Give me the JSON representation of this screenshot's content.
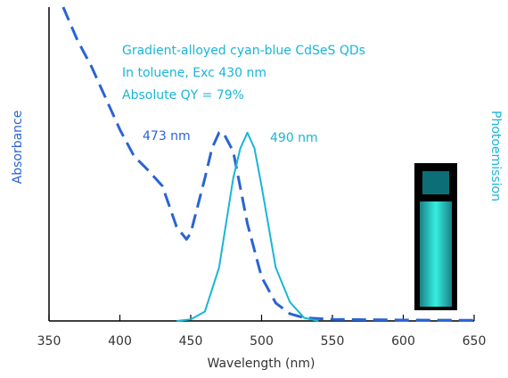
{
  "chart_data": {
    "type": "line",
    "annotations": [
      "Gradient-alloyed cyan-blue CdSeS QDs",
      "In toluene, Exc 430 nm",
      "Absolute QY = 79%"
    ],
    "peak_labels": [
      "473 nm",
      "490 nm"
    ],
    "xlabel": "Wavelength (nm)",
    "ylabel": "Absorbance",
    "y2label": "Photoemission",
    "xlim": [
      350,
      650
    ],
    "xticks": [
      350,
      400,
      450,
      500,
      550,
      600,
      650
    ],
    "ylim": [
      0,
      1
    ],
    "y2lim": [
      0,
      1
    ],
    "series": [
      {
        "name": "Absorbance",
        "color": "#2a63d4",
        "dashed": true,
        "x": [
          360,
          370,
          380,
          390,
          400,
          410,
          420,
          430,
          440,
          447,
          450,
          460,
          465,
          470,
          473,
          480,
          490,
          500,
          510,
          520,
          530,
          550,
          600,
          650
        ],
        "values": [
          1.0,
          0.895,
          0.81,
          0.71,
          0.61,
          0.525,
          0.48,
          0.43,
          0.3,
          0.26,
          0.28,
          0.455,
          0.55,
          0.6,
          0.6,
          0.54,
          0.31,
          0.14,
          0.057,
          0.023,
          0.01,
          0.005,
          0.003,
          0.002
        ]
      },
      {
        "name": "Photoemission",
        "color": "#1ab5d6",
        "axis": "y2",
        "x": [
          440,
          450,
          460,
          470,
          480,
          485,
          490,
          495,
          500,
          510,
          520,
          530,
          540
        ],
        "values": [
          0,
          0.005,
          0.03,
          0.17,
          0.455,
          0.55,
          0.6,
          0.55,
          0.43,
          0.17,
          0.06,
          0.01,
          0
        ]
      }
    ]
  }
}
